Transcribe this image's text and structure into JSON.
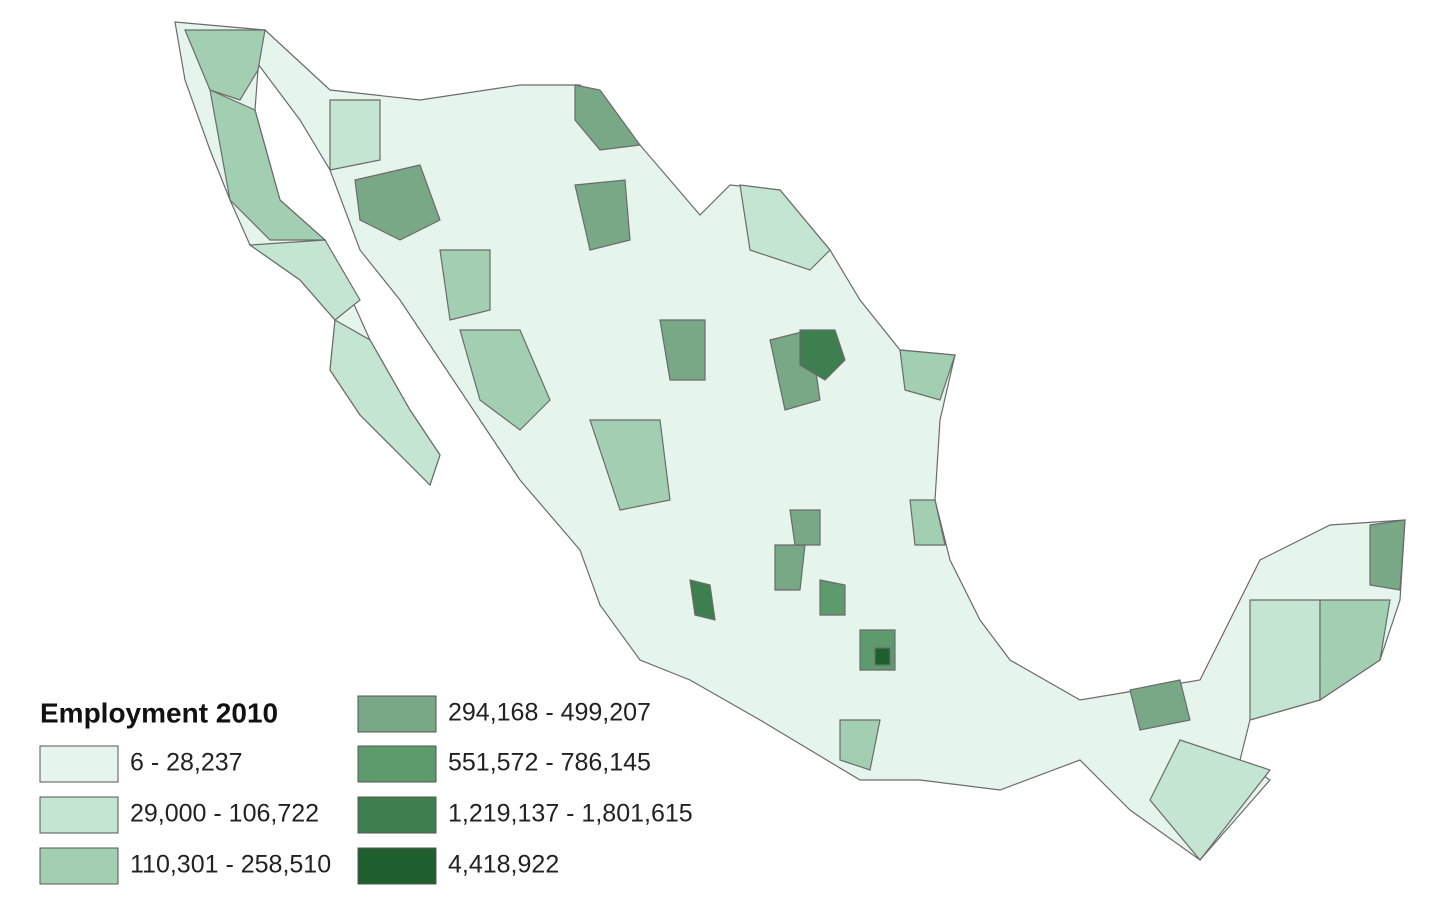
{
  "legend": {
    "title": "Employment 2010",
    "items": [
      {
        "label": "6 - 28,237",
        "color": "#e5f5ec"
      },
      {
        "label": "29,000 - 106,722",
        "color": "#c4e5d1"
      },
      {
        "label": "110,301 - 258,510",
        "color": "#a2cfb2"
      },
      {
        "label": "294,168 - 499,207",
        "color": "#78a886"
      },
      {
        "label": "551,572 - 786,145",
        "color": "#5d9a6c"
      },
      {
        "label": "1,219,137 - 1,801,615",
        "color": "#3e7f4f"
      },
      {
        "label": "4,418,922",
        "color": "#1f5f2e"
      }
    ]
  }
}
